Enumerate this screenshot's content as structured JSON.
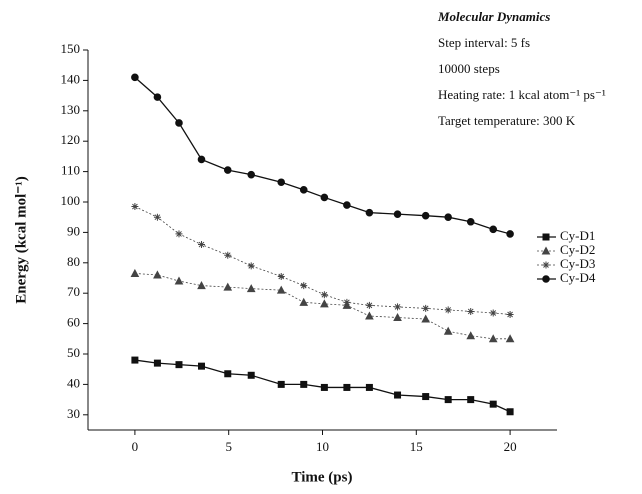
{
  "chart_data": {
    "type": "line",
    "annotations": [
      "Molecular Dynamics",
      "Step interval: 5 fs",
      "10000 steps",
      "Heating rate: 1 kcal atom⁻¹ ps⁻¹",
      "Target temperature: 300 K"
    ],
    "x_label": "Time (ps)",
    "y_label": "Energy (kcal mol⁻¹)",
    "x": [
      0,
      1.2,
      2.35,
      3.55,
      4.95,
      6.2,
      7.8,
      9,
      10.1,
      11.3,
      12.5,
      14,
      15.5,
      16.7,
      17.9,
      19.1,
      20
    ],
    "series": [
      {
        "name": "Cy-D1",
        "color": "#111111",
        "marker": "square",
        "values": [
          48,
          47,
          46.5,
          46,
          43.5,
          43,
          40,
          40,
          39,
          39,
          39,
          36.5,
          36,
          35,
          35,
          33.5,
          31
        ]
      },
      {
        "name": "Cy-D2",
        "color": "#444444",
        "marker": "triangle",
        "values": [
          76.5,
          76,
          74,
          72.5,
          72,
          71.5,
          71,
          67,
          66.5,
          66,
          62.5,
          62,
          61.5,
          57.5,
          56,
          55,
          55
        ]
      },
      {
        "name": "Cy-D3",
        "color": "#444444",
        "marker": "star",
        "values": [
          98.5,
          95,
          89.5,
          86,
          82.5,
          79,
          75.5,
          72.5,
          69.5,
          67,
          66,
          65.5,
          65,
          64.5,
          64,
          63.5,
          63
        ]
      },
      {
        "name": "Cy-D4",
        "color": "#111111",
        "marker": "circle",
        "values": [
          141,
          134.5,
          126,
          114,
          110.5,
          109,
          106.5,
          104,
          101.5,
          99,
          96.5,
          96,
          95.5,
          95,
          93.5,
          91,
          89.5
        ]
      }
    ],
    "xlim": [
      -2.5,
      22.5
    ],
    "xticks": [
      0,
      5,
      10,
      15,
      20
    ],
    "ylim": [
      25,
      150
    ],
    "yticks": [
      30,
      40,
      50,
      60,
      70,
      80,
      90,
      100,
      110,
      120,
      130,
      140,
      150
    ]
  }
}
